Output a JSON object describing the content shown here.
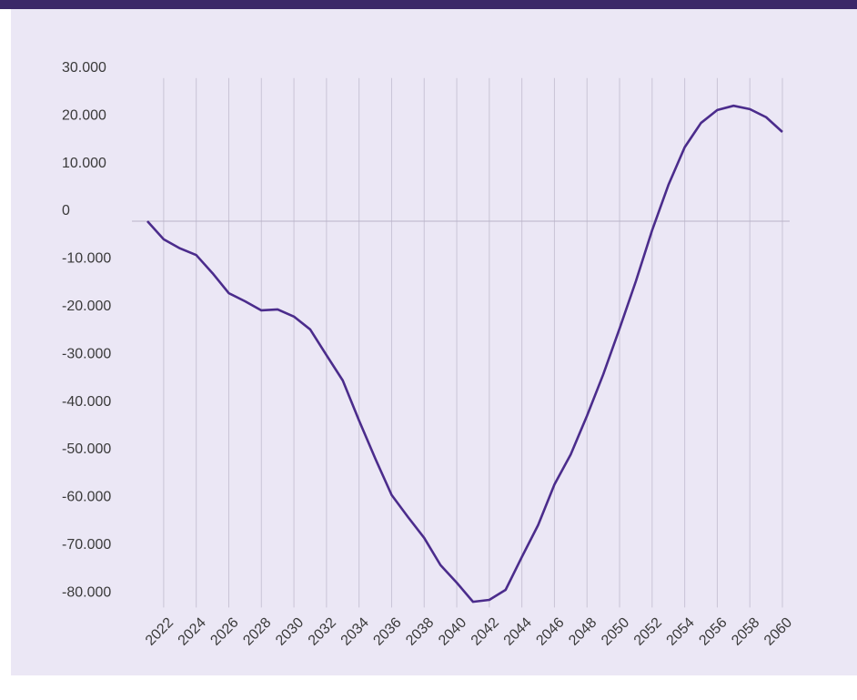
{
  "chart_data": {
    "type": "line",
    "x": [
      2021,
      2022,
      2023,
      2024,
      2025,
      2026,
      2027,
      2028,
      2029,
      2030,
      2031,
      2032,
      2033,
      2034,
      2035,
      2036,
      2037,
      2038,
      2039,
      2040,
      2041,
      2042,
      2043,
      2044,
      2045,
      2046,
      2047,
      2048,
      2049,
      2050,
      2051,
      2052,
      2053,
      2054,
      2055,
      2056,
      2057,
      2058,
      2059,
      2060
    ],
    "series": [
      {
        "color": "#4b2c8c",
        "values": [
          0,
          -3800,
          -5700,
          -7100,
          -10900,
          -15100,
          -16800,
          -18700,
          -18500,
          -20000,
          -22700,
          -28100,
          -33400,
          -41800,
          -49800,
          -57400,
          -62000,
          -66400,
          -72100,
          -75800,
          -79800,
          -79400,
          -77300,
          -70400,
          -63700,
          -55200,
          -48900,
          -40800,
          -32100,
          -22500,
          -12600,
          -1900,
          7600,
          15500,
          20600,
          23300,
          24200,
          23500,
          21800,
          18700
        ]
      }
    ],
    "xlim": [
      2021,
      2060
    ],
    "xticks": [
      2022,
      2024,
      2026,
      2028,
      2030,
      2032,
      2034,
      2036,
      2038,
      2040,
      2042,
      2044,
      2046,
      2048,
      2050,
      2052,
      2054,
      2056,
      2058,
      2060
    ],
    "ylim": [
      -81000,
      30000
    ],
    "yticks": [
      {
        "value": 30000,
        "label": "30.000"
      },
      {
        "value": 20000,
        "label": "20.000"
      },
      {
        "value": 10000,
        "label": "10.000"
      },
      0,
      {
        "value": -10000,
        "label": "-10.000"
      },
      {
        "value": -20000,
        "label": "-20.000"
      },
      {
        "value": -30000,
        "label": "-30.000"
      },
      {
        "value": -40000,
        "label": "-40.000"
      },
      {
        "value": -50000,
        "label": "-50.000"
      },
      {
        "value": -60000,
        "label": "-60.000"
      },
      {
        "value": -70000,
        "label": "-70.000"
      },
      {
        "value": -80000,
        "label": "-80.000"
      }
    ],
    "grid": "x"
  }
}
